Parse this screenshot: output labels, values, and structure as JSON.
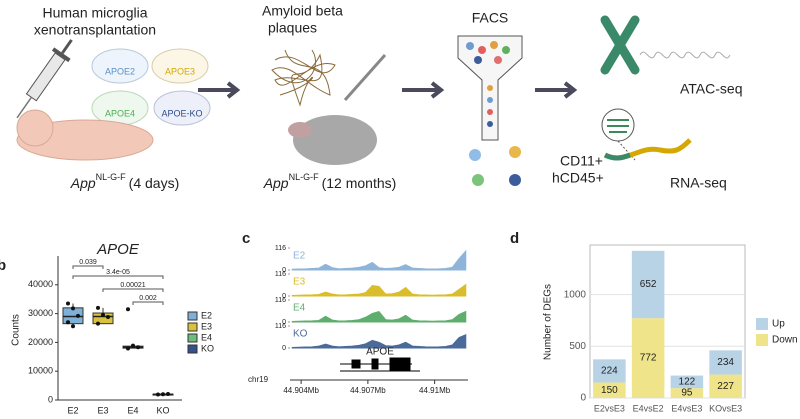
{
  "panel_labels": [
    "b",
    "c",
    "d"
  ],
  "workflow": {
    "transplant_title": [
      "Human microglia",
      "xenotransplantation"
    ],
    "dishes": [
      "APOE2",
      "APOE3",
      "APOE4",
      "APOE-KO"
    ],
    "pup_label": {
      "gene": "App",
      "allele": "NL-G-F",
      "age": "(4 days)"
    },
    "plaque_title": [
      "Amyloid beta",
      "plaques"
    ],
    "adult_label": {
      "gene": "App",
      "allele": "NL-G-F",
      "age": "(12 months)"
    },
    "facs": "FACS",
    "markers": [
      "CD11+",
      "hCD45+"
    ],
    "assays": [
      "ATAC-seq",
      "RNA-seq"
    ]
  },
  "chart_data": [
    {
      "type": "box",
      "title": "APOE",
      "ylabel": "Counts",
      "ylim": [
        0,
        50000
      ],
      "yticks": [
        0,
        10000,
        20000,
        30000,
        40000
      ],
      "pvalues": [
        "0.039",
        "3.4e-05",
        "0.00021",
        "0.002"
      ],
      "series": [
        {
          "name": "E2",
          "color": "#7fb0d8",
          "min": 25600,
          "q1": 26500,
          "median": 29000,
          "q3": 32000,
          "max": 33500,
          "points": [
            33500,
            31800,
            29200,
            27000,
            25600
          ]
        },
        {
          "name": "E3",
          "color": "#d9c33c",
          "min": 26500,
          "q1": 26500,
          "median": 29000,
          "q3": 30200,
          "max": 32000,
          "points": [
            32000,
            29500,
            28800,
            26500
          ]
        },
        {
          "name": "E4",
          "color": "#6cbf7b",
          "min": 17900,
          "q1": 18000,
          "median": 18300,
          "q3": 18700,
          "max": 18900,
          "points": [
            31500,
            18900,
            18300,
            17900
          ]
        },
        {
          "name": "KO",
          "color": "#35508a",
          "min": 1900,
          "q1": 1950,
          "median": 2000,
          "q3": 2050,
          "max": 2100,
          "points": [
            1900,
            2000,
            2100
          ]
        }
      ]
    },
    {
      "type": "area",
      "chrom": "chr19",
      "gene": "APOE",
      "xlim": [
        44.9035,
        44.9115
      ],
      "xticks": [
        {
          "value": 44.904,
          "label": "44.904Mb"
        },
        {
          "value": 44.907,
          "label": "44.907Mb"
        },
        {
          "value": 44.91,
          "label": "44.91Mb"
        }
      ],
      "ylim": [
        0,
        116
      ],
      "yticks": [
        0,
        116
      ],
      "x": [
        44.9036,
        44.9039,
        44.9042,
        44.9045,
        44.9048,
        44.9051,
        44.9054,
        44.9057,
        44.906,
        44.9063,
        44.9066,
        44.9069,
        44.9072,
        44.9075,
        44.9078,
        44.9081,
        44.9084,
        44.9087,
        44.909,
        44.9093,
        44.9096,
        44.9099,
        44.9102,
        44.9105,
        44.9108,
        44.9111,
        44.9114
      ],
      "series": [
        {
          "name": "E2",
          "color": "#8fb4d9",
          "values": [
            4,
            5,
            6,
            8,
            10,
            30,
            12,
            6,
            8,
            10,
            14,
            22,
            40,
            12,
            8,
            10,
            14,
            28,
            10,
            8,
            6,
            5,
            6,
            8,
            14,
            60,
            100
          ]
        },
        {
          "name": "E3",
          "color": "#d9bd2a",
          "values": [
            3,
            4,
            5,
            6,
            8,
            20,
            10,
            5,
            6,
            8,
            10,
            18,
            55,
            50,
            10,
            12,
            20,
            45,
            10,
            6,
            5,
            4,
            5,
            6,
            10,
            35,
            60
          ]
        },
        {
          "name": "E4",
          "color": "#5fae6e",
          "values": [
            3,
            4,
            5,
            6,
            8,
            30,
            10,
            5,
            6,
            8,
            12,
            25,
            45,
            55,
            12,
            10,
            16,
            35,
            10,
            6,
            5,
            4,
            5,
            6,
            12,
            40,
            55
          ]
        },
        {
          "name": "KO",
          "color": "#4a6a9a",
          "values": [
            3,
            4,
            5,
            6,
            10,
            20,
            10,
            6,
            8,
            10,
            14,
            22,
            40,
            30,
            12,
            10,
            16,
            30,
            10,
            8,
            6,
            5,
            6,
            8,
            16,
            55,
            70
          ]
        }
      ]
    },
    {
      "type": "bar",
      "ylabel": "Number of DEGs",
      "categories": [
        "E2vsE3",
        "E4vsE2",
        "E4vsE3",
        "KOvsE3"
      ],
      "ylim": [
        0,
        1480
      ],
      "yticks": [
        0,
        500,
        1000
      ],
      "grid": true,
      "series": [
        {
          "name": "Down",
          "color": "#efe48a",
          "values": [
            150,
            772,
            95,
            227
          ]
        },
        {
          "name": "Up",
          "color": "#b9d3e6",
          "values": [
            224,
            652,
            122,
            234
          ]
        }
      ]
    }
  ]
}
